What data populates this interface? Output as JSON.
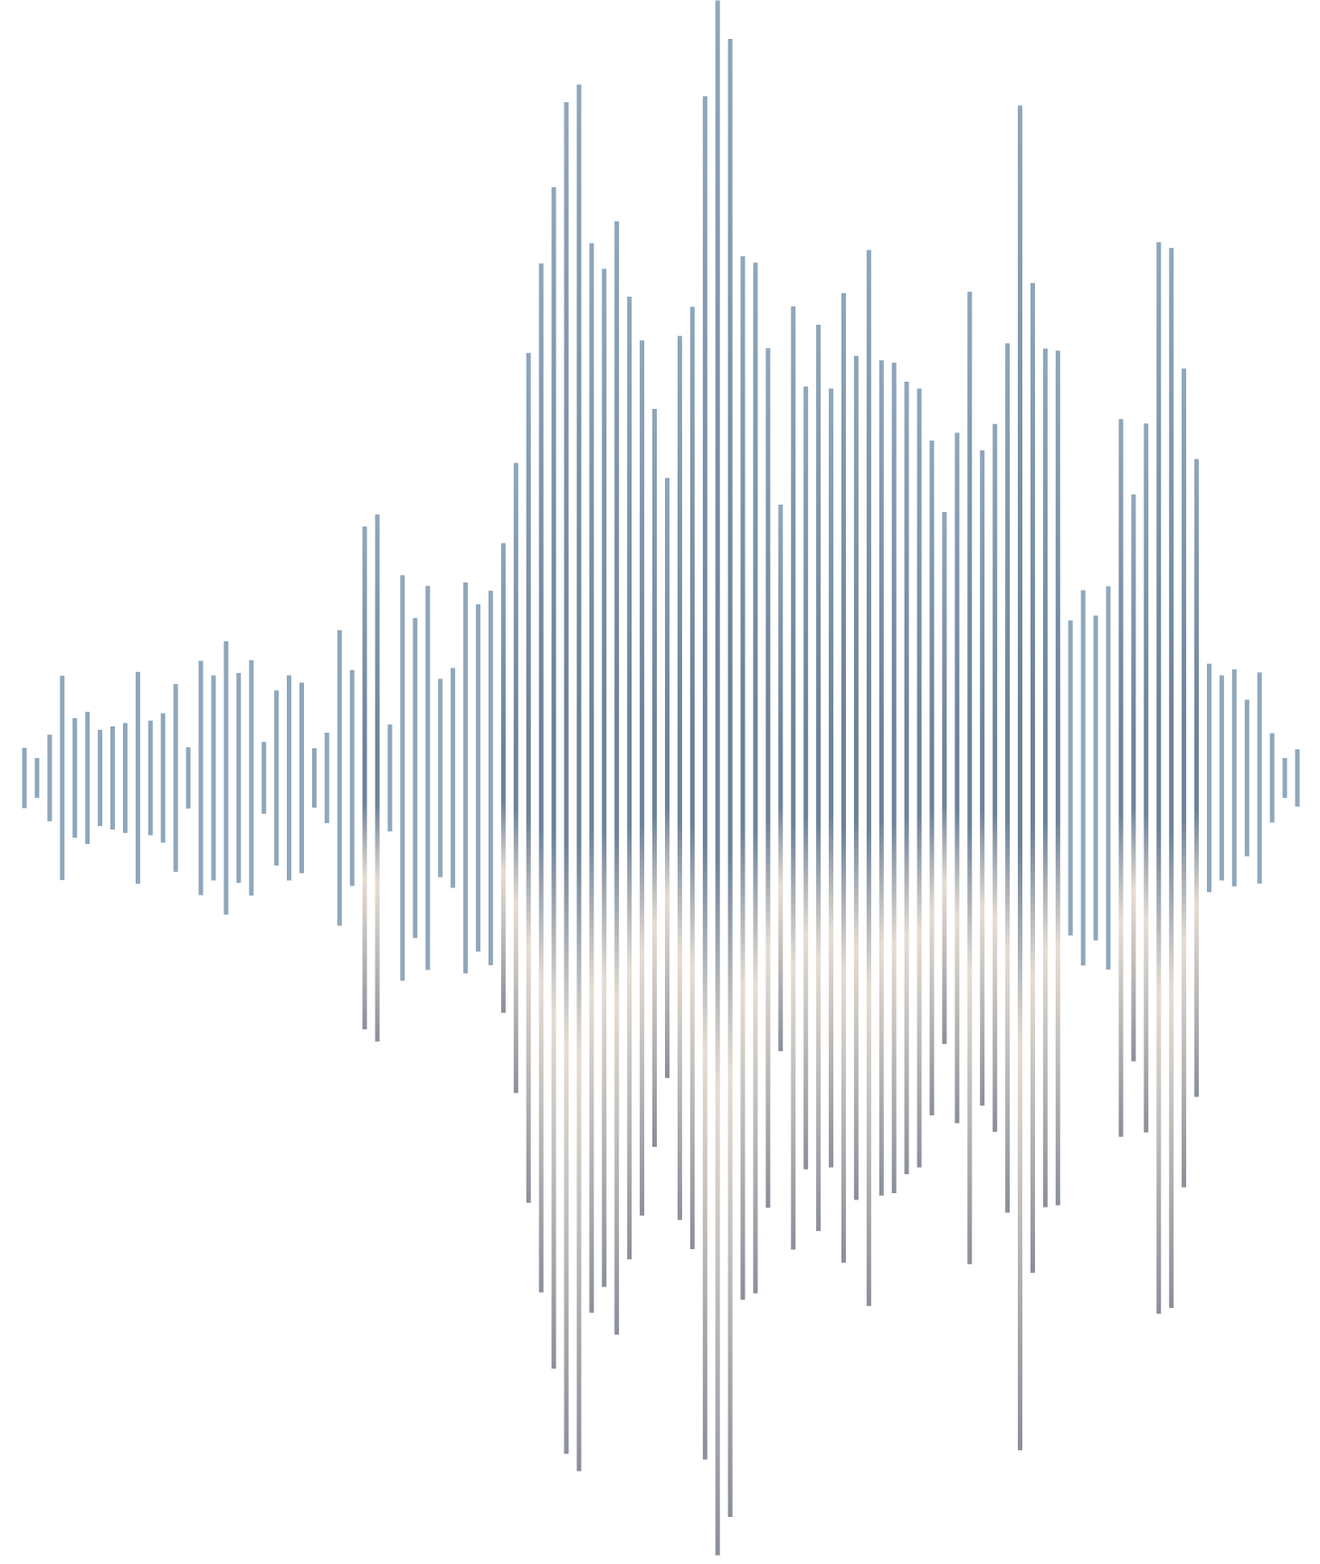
{
  "waveform": {
    "description_colors": {
      "bar_top": "#8fa7bc",
      "bar_mid": "#6d8299",
      "bar_bottom": "#8a8f9a",
      "highlight": "#e6ddd2",
      "background": "#ffffff"
    },
    "amplitudes": [
      0.062,
      0.041,
      0.089,
      0.21,
      0.123,
      0.136,
      0.099,
      0.106,
      0.113,
      0.218,
      0.118,
      0.133,
      0.193,
      0.063,
      0.241,
      0.211,
      0.281,
      0.216,
      0.242,
      0.074,
      0.18,
      0.211,
      0.196,
      0.061,
      0.093,
      0.304,
      0.222,
      0.517,
      0.542,
      0.11,
      0.417,
      0.329,
      0.395,
      0.204,
      0.226,
      0.402,
      0.357,
      0.385,
      0.483,
      0.648,
      0.874,
      1.058,
      1.215,
      1.39,
      1.426,
      1.1,
      1.047,
      1.145,
      0.99,
      0.9,
      0.759,
      0.617,
      0.909,
      0.969,
      1.402,
      1.599,
      1.52,
      1.073,
      1.06,
      0.884,
      0.562,
      0.97,
      0.805,
      0.932,
      0.801,
      0.997,
      0.868,
      1.086,
      0.859,
      0.854,
      0.815,
      0.801,
      0.694,
      0.547,
      0.71,
      1.0,
      0.674,
      0.728,
      0.894,
      1.383,
      1.018,
      0.883,
      0.879,
      0.324,
      0.386,
      0.334,
      0.394,
      0.738,
      0.583,
      0.729,
      1.102,
      1.09,
      0.842,
      0.656,
      0.235,
      0.211,
      0.223,
      0.161,
      0.217,
      0.092,
      0.041,
      0.059
    ]
  }
}
